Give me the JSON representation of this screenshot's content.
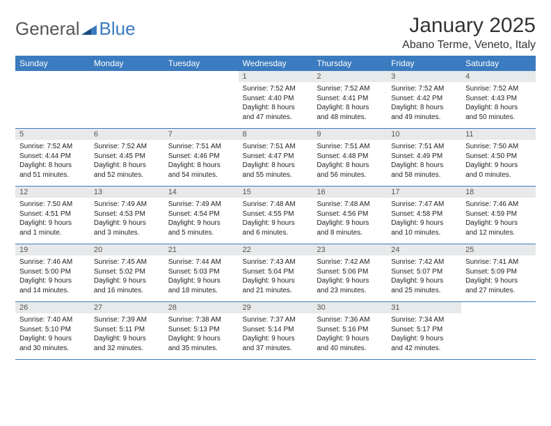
{
  "brand": {
    "part1": "General",
    "part2": "Blue"
  },
  "title": "January 2025",
  "location": "Abano Terme, Veneto, Italy",
  "colors": {
    "header_bg": "#3b7bbf",
    "header_text": "#ffffff",
    "daynum_bg": "#e8e9ea",
    "body_text": "#222222",
    "title_text": "#333333",
    "row_border": "#3b7bbf",
    "page_bg": "#ffffff"
  },
  "typography": {
    "title_fontsize": 30,
    "location_fontsize": 16,
    "header_fontsize": 12,
    "daynum_fontsize": 11,
    "cell_fontsize": 10
  },
  "weekdays": [
    "Sunday",
    "Monday",
    "Tuesday",
    "Wednesday",
    "Thursday",
    "Friday",
    "Saturday"
  ],
  "weeks": [
    [
      {
        "empty": true
      },
      {
        "empty": true
      },
      {
        "empty": true
      },
      {
        "num": "1",
        "sunrise": "Sunrise: 7:52 AM",
        "sunset": "Sunset: 4:40 PM",
        "daylight1": "Daylight: 8 hours",
        "daylight2": "and 47 minutes."
      },
      {
        "num": "2",
        "sunrise": "Sunrise: 7:52 AM",
        "sunset": "Sunset: 4:41 PM",
        "daylight1": "Daylight: 8 hours",
        "daylight2": "and 48 minutes."
      },
      {
        "num": "3",
        "sunrise": "Sunrise: 7:52 AM",
        "sunset": "Sunset: 4:42 PM",
        "daylight1": "Daylight: 8 hours",
        "daylight2": "and 49 minutes."
      },
      {
        "num": "4",
        "sunrise": "Sunrise: 7:52 AM",
        "sunset": "Sunset: 4:43 PM",
        "daylight1": "Daylight: 8 hours",
        "daylight2": "and 50 minutes."
      }
    ],
    [
      {
        "num": "5",
        "sunrise": "Sunrise: 7:52 AM",
        "sunset": "Sunset: 4:44 PM",
        "daylight1": "Daylight: 8 hours",
        "daylight2": "and 51 minutes."
      },
      {
        "num": "6",
        "sunrise": "Sunrise: 7:52 AM",
        "sunset": "Sunset: 4:45 PM",
        "daylight1": "Daylight: 8 hours",
        "daylight2": "and 52 minutes."
      },
      {
        "num": "7",
        "sunrise": "Sunrise: 7:51 AM",
        "sunset": "Sunset: 4:46 PM",
        "daylight1": "Daylight: 8 hours",
        "daylight2": "and 54 minutes."
      },
      {
        "num": "8",
        "sunrise": "Sunrise: 7:51 AM",
        "sunset": "Sunset: 4:47 PM",
        "daylight1": "Daylight: 8 hours",
        "daylight2": "and 55 minutes."
      },
      {
        "num": "9",
        "sunrise": "Sunrise: 7:51 AM",
        "sunset": "Sunset: 4:48 PM",
        "daylight1": "Daylight: 8 hours",
        "daylight2": "and 56 minutes."
      },
      {
        "num": "10",
        "sunrise": "Sunrise: 7:51 AM",
        "sunset": "Sunset: 4:49 PM",
        "daylight1": "Daylight: 8 hours",
        "daylight2": "and 58 minutes."
      },
      {
        "num": "11",
        "sunrise": "Sunrise: 7:50 AM",
        "sunset": "Sunset: 4:50 PM",
        "daylight1": "Daylight: 9 hours",
        "daylight2": "and 0 minutes."
      }
    ],
    [
      {
        "num": "12",
        "sunrise": "Sunrise: 7:50 AM",
        "sunset": "Sunset: 4:51 PM",
        "daylight1": "Daylight: 9 hours",
        "daylight2": "and 1 minute."
      },
      {
        "num": "13",
        "sunrise": "Sunrise: 7:49 AM",
        "sunset": "Sunset: 4:53 PM",
        "daylight1": "Daylight: 9 hours",
        "daylight2": "and 3 minutes."
      },
      {
        "num": "14",
        "sunrise": "Sunrise: 7:49 AM",
        "sunset": "Sunset: 4:54 PM",
        "daylight1": "Daylight: 9 hours",
        "daylight2": "and 5 minutes."
      },
      {
        "num": "15",
        "sunrise": "Sunrise: 7:48 AM",
        "sunset": "Sunset: 4:55 PM",
        "daylight1": "Daylight: 9 hours",
        "daylight2": "and 6 minutes."
      },
      {
        "num": "16",
        "sunrise": "Sunrise: 7:48 AM",
        "sunset": "Sunset: 4:56 PM",
        "daylight1": "Daylight: 9 hours",
        "daylight2": "and 8 minutes."
      },
      {
        "num": "17",
        "sunrise": "Sunrise: 7:47 AM",
        "sunset": "Sunset: 4:58 PM",
        "daylight1": "Daylight: 9 hours",
        "daylight2": "and 10 minutes."
      },
      {
        "num": "18",
        "sunrise": "Sunrise: 7:46 AM",
        "sunset": "Sunset: 4:59 PM",
        "daylight1": "Daylight: 9 hours",
        "daylight2": "and 12 minutes."
      }
    ],
    [
      {
        "num": "19",
        "sunrise": "Sunrise: 7:46 AM",
        "sunset": "Sunset: 5:00 PM",
        "daylight1": "Daylight: 9 hours",
        "daylight2": "and 14 minutes."
      },
      {
        "num": "20",
        "sunrise": "Sunrise: 7:45 AM",
        "sunset": "Sunset: 5:02 PM",
        "daylight1": "Daylight: 9 hours",
        "daylight2": "and 16 minutes."
      },
      {
        "num": "21",
        "sunrise": "Sunrise: 7:44 AM",
        "sunset": "Sunset: 5:03 PM",
        "daylight1": "Daylight: 9 hours",
        "daylight2": "and 18 minutes."
      },
      {
        "num": "22",
        "sunrise": "Sunrise: 7:43 AM",
        "sunset": "Sunset: 5:04 PM",
        "daylight1": "Daylight: 9 hours",
        "daylight2": "and 21 minutes."
      },
      {
        "num": "23",
        "sunrise": "Sunrise: 7:42 AM",
        "sunset": "Sunset: 5:06 PM",
        "daylight1": "Daylight: 9 hours",
        "daylight2": "and 23 minutes."
      },
      {
        "num": "24",
        "sunrise": "Sunrise: 7:42 AM",
        "sunset": "Sunset: 5:07 PM",
        "daylight1": "Daylight: 9 hours",
        "daylight2": "and 25 minutes."
      },
      {
        "num": "25",
        "sunrise": "Sunrise: 7:41 AM",
        "sunset": "Sunset: 5:09 PM",
        "daylight1": "Daylight: 9 hours",
        "daylight2": "and 27 minutes."
      }
    ],
    [
      {
        "num": "26",
        "sunrise": "Sunrise: 7:40 AM",
        "sunset": "Sunset: 5:10 PM",
        "daylight1": "Daylight: 9 hours",
        "daylight2": "and 30 minutes."
      },
      {
        "num": "27",
        "sunrise": "Sunrise: 7:39 AM",
        "sunset": "Sunset: 5:11 PM",
        "daylight1": "Daylight: 9 hours",
        "daylight2": "and 32 minutes."
      },
      {
        "num": "28",
        "sunrise": "Sunrise: 7:38 AM",
        "sunset": "Sunset: 5:13 PM",
        "daylight1": "Daylight: 9 hours",
        "daylight2": "and 35 minutes."
      },
      {
        "num": "29",
        "sunrise": "Sunrise: 7:37 AM",
        "sunset": "Sunset: 5:14 PM",
        "daylight1": "Daylight: 9 hours",
        "daylight2": "and 37 minutes."
      },
      {
        "num": "30",
        "sunrise": "Sunrise: 7:36 AM",
        "sunset": "Sunset: 5:16 PM",
        "daylight1": "Daylight: 9 hours",
        "daylight2": "and 40 minutes."
      },
      {
        "num": "31",
        "sunrise": "Sunrise: 7:34 AM",
        "sunset": "Sunset: 5:17 PM",
        "daylight1": "Daylight: 9 hours",
        "daylight2": "and 42 minutes."
      },
      {
        "empty": true
      }
    ]
  ]
}
